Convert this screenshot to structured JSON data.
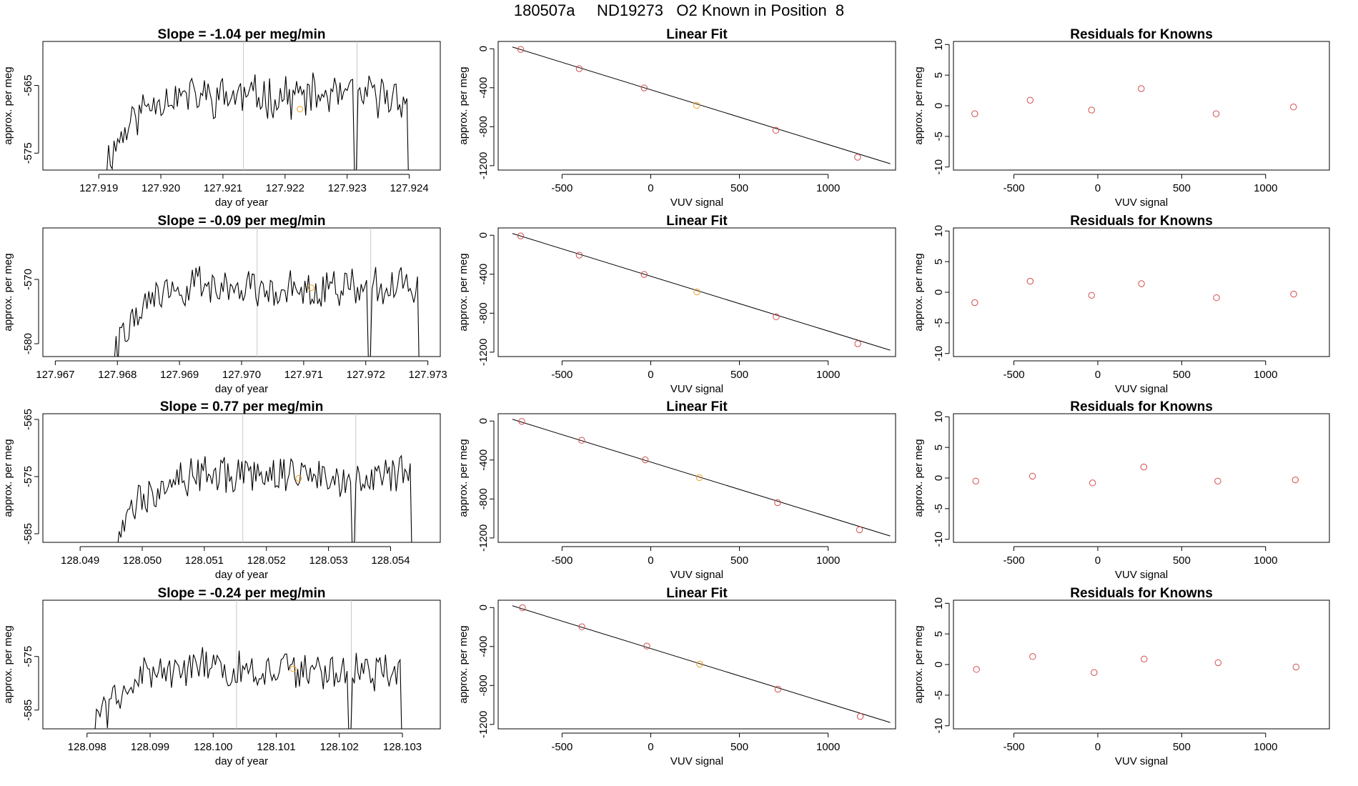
{
  "header": {
    "title": "180507a     ND19273   O2 Known in Position  8"
  },
  "labels": {
    "day_of_year": "day of year",
    "approx_per_meg": "approx. per meg",
    "vuv_signal": "VUV signal",
    "linear_fit": "Linear Fit",
    "residuals": "Residuals for Knowns"
  },
  "colors": {
    "line": "#000000",
    "points": "#d44a4a",
    "highlight": "#f0a020",
    "guide": "#c8c8c8"
  },
  "chart_data": [
    {
      "type": "line",
      "title": "Slope =  -1.04  per meg/min",
      "xlabel": "day of year",
      "ylabel": "approx. per meg",
      "xlim": [
        127.9181,
        127.9245
      ],
      "ylim": [
        -577.5,
        -558.5
      ],
      "xticks": [
        127.919,
        127.92,
        127.921,
        127.922,
        127.923,
        127.924
      ],
      "xtick_labels": [
        "127.919",
        "127.920",
        "127.921",
        "127.922",
        "127.923",
        "127.924"
      ],
      "yticks": [
        -575,
        -565
      ],
      "ytick_labels": [
        "-575",
        "-565"
      ],
      "vlines": [
        127.92133,
        127.92316
      ],
      "highlight": {
        "x": 127.92224,
        "y": -568.5
      },
      "seed": 11,
      "level": -566.6,
      "amp": 2.6,
      "trace_start": 127.9191,
      "trace_end": 127.92405,
      "dip": {
        "x": 127.92312,
        "to": -578.0
      }
    },
    {
      "type": "scatter",
      "title": "Linear Fit",
      "xlabel": "VUV signal",
      "ylabel": "approx. per meg",
      "xlim": [
        -860,
        1380
      ],
      "ylim": [
        -1245,
        75
      ],
      "xticks": [
        -500,
        0,
        500,
        1000
      ],
      "xtick_labels": [
        "-500",
        "0",
        "500",
        "1000"
      ],
      "yticks": [
        0,
        -400,
        -800,
        -1200
      ],
      "ytick_labels": [
        "0",
        "-400",
        "-800",
        "-1200"
      ],
      "fit": {
        "x": [
          -780,
          1350
        ],
        "y": [
          18,
          -1180
        ]
      },
      "x": [
        -733,
        -403,
        -37,
        259,
        705,
        1166
      ],
      "y": [
        -7,
        -204,
        -402,
        -581,
        -837,
        -1113
      ],
      "highlight_index": 3
    },
    {
      "type": "scatter",
      "title": "Residuals for Knowns",
      "xlabel": "VUV signal",
      "ylabel": "approx. per meg",
      "xlim": [
        -860,
        1380
      ],
      "ylim": [
        -10.5,
        10.5
      ],
      "xticks": [
        -500,
        0,
        500,
        1000
      ],
      "xtick_labels": [
        "-500",
        "0",
        "500",
        "1000"
      ],
      "yticks": [
        10,
        5,
        0,
        -5,
        -10
      ],
      "ytick_labels": [
        "10",
        "5",
        "0",
        "-5",
        "-10"
      ],
      "x": [
        -733,
        -403,
        -37,
        259,
        705,
        1166
      ],
      "y": [
        -1.3,
        0.9,
        -0.7,
        2.8,
        -1.3,
        -0.2
      ]
    },
    {
      "type": "line",
      "title": "Slope =  -0.09  per meg/min",
      "xlabel": "day of year",
      "ylabel": "approx. per meg",
      "xlim": [
        127.9668,
        127.9732
      ],
      "ylim": [
        -582,
        -562
      ],
      "xticks": [
        127.967,
        127.968,
        127.969,
        127.97,
        127.971,
        127.972,
        127.973
      ],
      "xtick_labels": [
        "127.967",
        "127.968",
        "127.969",
        "127.970",
        "127.971",
        "127.972",
        "127.973"
      ],
      "yticks": [
        -580,
        -570
      ],
      "ytick_labels": [
        "-580",
        "-570"
      ],
      "vlines": [
        127.97025,
        127.97208
      ],
      "highlight": {
        "x": 127.97112,
        "y": -571.3
      },
      "seed": 22,
      "level": -571.2,
      "amp": 2.5,
      "trace_start": 127.96795,
      "trace_end": 127.97292,
      "dip": {
        "x": 127.97205,
        "to": -583.0
      }
    },
    {
      "type": "scatter",
      "title": "Linear Fit",
      "xlabel": "VUV signal",
      "ylabel": "approx. per meg",
      "xlim": [
        -860,
        1380
      ],
      "ylim": [
        -1245,
        75
      ],
      "xticks": [
        -500,
        0,
        500,
        1000
      ],
      "xtick_labels": [
        "-500",
        "0",
        "500",
        "1000"
      ],
      "yticks": [
        0,
        -400,
        -800,
        -1200
      ],
      "ytick_labels": [
        "0",
        "-400",
        "-800",
        "-1200"
      ],
      "fit": {
        "x": [
          -780,
          1350
        ],
        "y": [
          18,
          -1180
        ]
      },
      "x": [
        -733,
        -403,
        -37,
        260,
        707,
        1167
      ],
      "y": [
        -7,
        -204,
        -402,
        -581,
        -837,
        -1113
      ],
      "highlight_index": 3
    },
    {
      "type": "scatter",
      "title": "Residuals for Knowns",
      "xlabel": "VUV signal",
      "ylabel": "approx. per meg",
      "xlim": [
        -860,
        1380
      ],
      "ylim": [
        -10.5,
        10.5
      ],
      "xticks": [
        -500,
        0,
        500,
        1000
      ],
      "xtick_labels": [
        "-500",
        "0",
        "500",
        "1000"
      ],
      "yticks": [
        10,
        5,
        0,
        -5,
        -10
      ],
      "ytick_labels": [
        "10",
        "5",
        "0",
        "-5",
        "-10"
      ],
      "x": [
        -733,
        -403,
        -37,
        260,
        707,
        1167
      ],
      "y": [
        -1.7,
        1.8,
        -0.5,
        1.4,
        -0.9,
        -0.3
      ]
    },
    {
      "type": "line",
      "title": "Slope =  0.77  per meg/min",
      "xlabel": "day of year",
      "ylabel": "approx. per meg",
      "xlim": [
        128.0484,
        128.0548
      ],
      "ylim": [
        -586.5,
        -564
      ],
      "xticks": [
        128.049,
        128.05,
        128.051,
        128.052,
        128.053,
        128.054
      ],
      "xtick_labels": [
        "128.049",
        "128.050",
        "128.051",
        "128.052",
        "128.053",
        "128.054"
      ],
      "yticks": [
        -585,
        -575,
        -565
      ],
      "ytick_labels": [
        "-585",
        "-575",
        "-565"
      ],
      "vlines": [
        128.05162,
        128.05344
      ],
      "highlight": {
        "x": 128.05252,
        "y": -575.3
      },
      "seed": 33,
      "level": -574.6,
      "amp": 3.0,
      "trace_start": 128.0496,
      "trace_end": 128.0544,
      "dip": {
        "x": 128.05341,
        "to": -588.0
      }
    },
    {
      "type": "scatter",
      "title": "Linear Fit",
      "xlabel": "VUV signal",
      "ylabel": "approx. per meg",
      "xlim": [
        -860,
        1380
      ],
      "ylim": [
        -1245,
        75
      ],
      "xticks": [
        -500,
        0,
        500,
        1000
      ],
      "xtick_labels": [
        "-500",
        "0",
        "500",
        "1000"
      ],
      "yticks": [
        0,
        -400,
        -800,
        -1200
      ],
      "ytick_labels": [
        "0",
        "-400",
        "-800",
        "-1200"
      ],
      "fit": {
        "x": [
          -780,
          1350
        ],
        "y": [
          18,
          -1180
        ]
      },
      "x": [
        -727,
        -389,
        -31,
        274,
        715,
        1177
      ],
      "y": [
        -4,
        -198,
        -398,
        -581,
        -838,
        -1116
      ],
      "highlight_index": 3
    },
    {
      "type": "scatter",
      "title": "Residuals for Knowns",
      "xlabel": "VUV signal",
      "ylabel": "approx. per meg",
      "xlim": [
        -860,
        1380
      ],
      "ylim": [
        -10.5,
        10.5
      ],
      "xticks": [
        -500,
        0,
        500,
        1000
      ],
      "xtick_labels": [
        "-500",
        "0",
        "500",
        "1000"
      ],
      "yticks": [
        10,
        5,
        0,
        -5,
        -10
      ],
      "ytick_labels": [
        "10",
        "5",
        "0",
        "-5",
        "-10"
      ],
      "x": [
        -727,
        -389,
        -31,
        274,
        715,
        1177
      ],
      "y": [
        -0.5,
        0.3,
        -0.8,
        1.8,
        -0.5,
        -0.3
      ]
    },
    {
      "type": "line",
      "title": "Slope =  -0.24  per meg/min",
      "xlabel": "day of year",
      "ylabel": "approx. per meg",
      "xlim": [
        128.0973,
        128.1036
      ],
      "ylim": [
        -588.5,
        -564.5
      ],
      "xticks": [
        128.098,
        128.099,
        128.1,
        128.101,
        128.102,
        128.103
      ],
      "xtick_labels": [
        "128.098",
        "128.099",
        "128.100",
        "128.101",
        "128.102",
        "128.103"
      ],
      "yticks": [
        -585,
        -575
      ],
      "ytick_labels": [
        "-585",
        "-575"
      ],
      "vlines": [
        128.10037,
        128.10219
      ],
      "highlight": {
        "x": 128.10127,
        "y": -577.3
      },
      "seed": 44,
      "level": -577.6,
      "amp": 3.2,
      "trace_start": 128.09812,
      "trace_end": 128.10305,
      "dip": {
        "x": 128.10217,
        "to": -590.0
      }
    },
    {
      "type": "scatter",
      "title": "Linear Fit",
      "xlabel": "VUV signal",
      "ylabel": "approx. per meg",
      "xlim": [
        -860,
        1380
      ],
      "ylim": [
        -1245,
        75
      ],
      "xticks": [
        -500,
        0,
        500,
        1000
      ],
      "xtick_labels": [
        "-500",
        "0",
        "500",
        "1000"
      ],
      "yticks": [
        0,
        -400,
        -800,
        -1200
      ],
      "ytick_labels": [
        "0",
        "-400",
        "-800",
        "-1200"
      ],
      "fit": {
        "x": [
          -780,
          1350
        ],
        "y": [
          18,
          -1180
        ]
      },
      "x": [
        -723,
        -388,
        -22,
        276,
        717,
        1181
      ],
      "y": [
        -2,
        -198,
        -396,
        -581,
        -838,
        -1118
      ],
      "highlight_index": 3
    },
    {
      "type": "scatter",
      "title": "Residuals for Knowns",
      "xlabel": "VUV signal",
      "ylabel": "approx. per meg",
      "xlim": [
        -860,
        1380
      ],
      "ylim": [
        -10.5,
        10.5
      ],
      "xticks": [
        -500,
        0,
        500,
        1000
      ],
      "xtick_labels": [
        "-500",
        "0",
        "500",
        "1000"
      ],
      "yticks": [
        10,
        5,
        0,
        -5,
        -10
      ],
      "ytick_labels": [
        "10",
        "5",
        "0",
        "-5",
        "-10"
      ],
      "x": [
        -723,
        -388,
        -22,
        276,
        717,
        1181
      ],
      "y": [
        -0.8,
        1.3,
        -1.3,
        0.9,
        0.3,
        -0.4
      ]
    }
  ]
}
